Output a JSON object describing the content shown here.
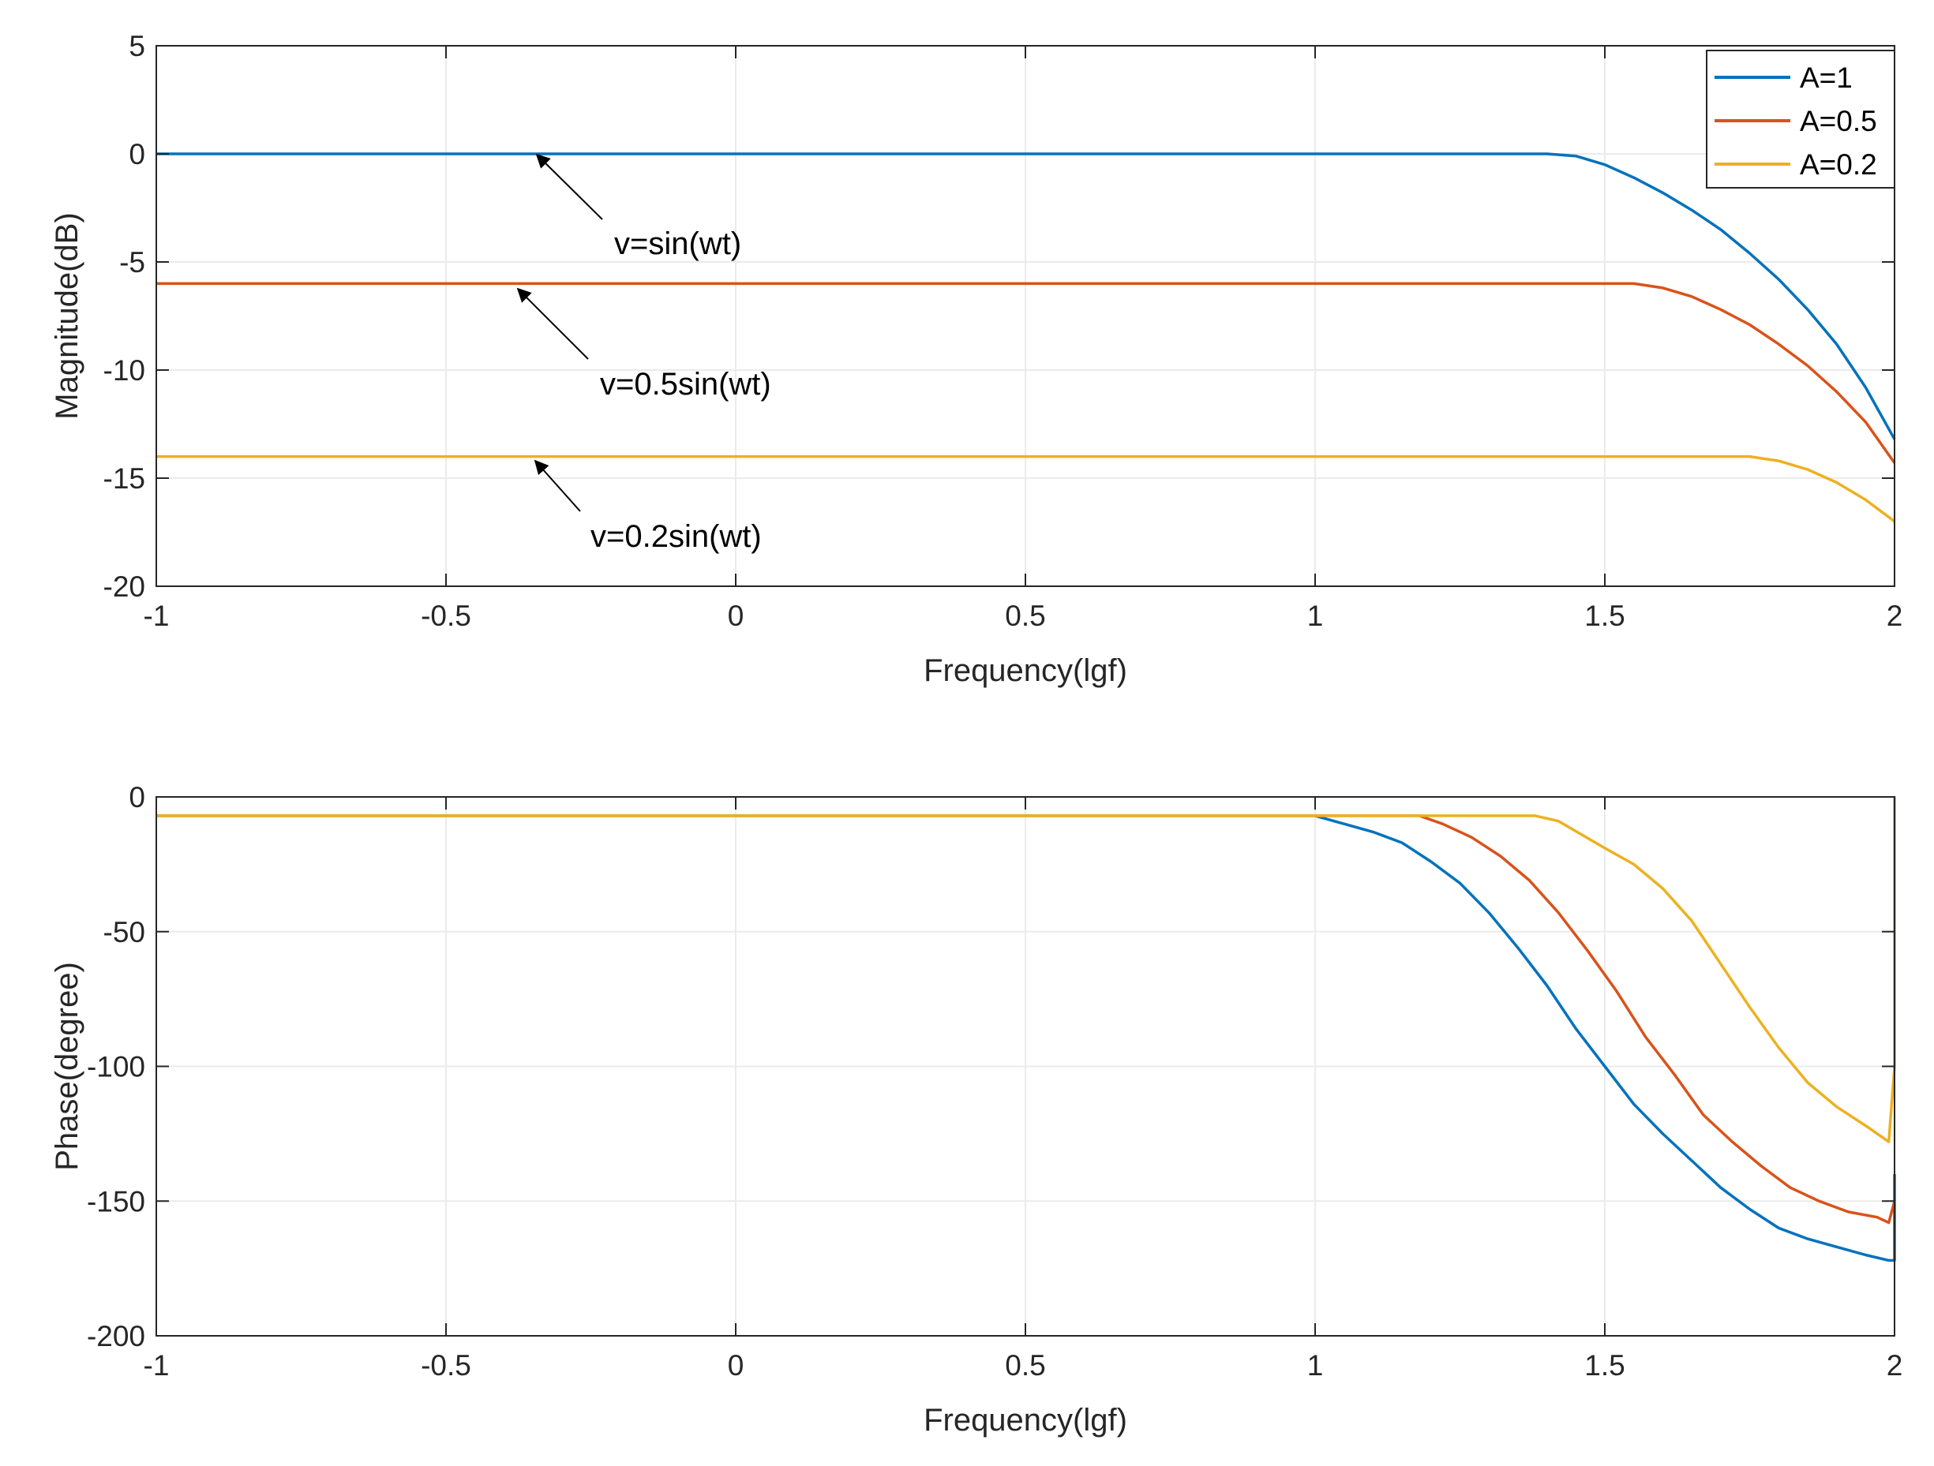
{
  "colors": {
    "A1": "#0072BD",
    "A05": "#D95319",
    "A02": "#EDB120",
    "axis": "#262626",
    "grid": "#ebebeb"
  },
  "chart_data": [
    {
      "type": "line",
      "xlabel": "Frequency(lgf)",
      "ylabel": "Magnitude(dB)",
      "xlim": [
        -1,
        2
      ],
      "ylim": [
        -20,
        5
      ],
      "xticks": [
        -1,
        -0.5,
        0,
        0.5,
        1,
        1.5,
        2
      ],
      "xtick_labels": [
        "-1",
        "-0.5",
        "0",
        "0.5",
        "1",
        "1.5",
        "2"
      ],
      "yticks": [
        -20,
        -15,
        -10,
        -5,
        0,
        5
      ],
      "ytick_labels": [
        "-20",
        "-15",
        "-10",
        "-5",
        "0",
        "5"
      ],
      "grid": true,
      "legend": {
        "position": "top-right",
        "entries": [
          "A=1",
          "A=0.5",
          "A=0.2"
        ]
      },
      "annotations": [
        {
          "text": "v=sin(wt)",
          "x": -0.35,
          "y": 0
        },
        {
          "text": "v=0.5sin(wt)",
          "x": -0.38,
          "y": -6
        },
        {
          "text": "v=0.2sin(wt)",
          "x": -0.35,
          "y": -14
        }
      ],
      "series": [
        {
          "name": "A=1",
          "x": [
            -1,
            1.4,
            1.45,
            1.5,
            1.55,
            1.6,
            1.65,
            1.7,
            1.75,
            1.8,
            1.85,
            1.9,
            1.95,
            2.0
          ],
          "y": [
            0,
            0,
            -0.1,
            -0.5,
            -1.1,
            -1.8,
            -2.6,
            -3.5,
            -4.6,
            -5.8,
            -7.2,
            -8.8,
            -10.8,
            -13.2
          ]
        },
        {
          "name": "A=0.5",
          "x": [
            -1,
            1.55,
            1.6,
            1.65,
            1.7,
            1.75,
            1.8,
            1.85,
            1.9,
            1.95,
            2.0
          ],
          "y": [
            -6,
            -6,
            -6.2,
            -6.6,
            -7.2,
            -7.9,
            -8.8,
            -9.8,
            -11.0,
            -12.4,
            -14.3
          ]
        },
        {
          "name": "A=0.2",
          "x": [
            -1,
            1.75,
            1.8,
            1.85,
            1.9,
            1.95,
            2.0
          ],
          "y": [
            -14,
            -14,
            -14.2,
            -14.6,
            -15.2,
            -16.0,
            -17.0
          ]
        }
      ]
    },
    {
      "type": "line",
      "xlabel": "Frequency(lgf)",
      "ylabel": "Phase(degree)",
      "xlim": [
        -1,
        2
      ],
      "ylim": [
        -200,
        0
      ],
      "xticks": [
        -1,
        -0.5,
        0,
        0.5,
        1,
        1.5,
        2
      ],
      "xtick_labels": [
        "-1",
        "-0.5",
        "0",
        "0.5",
        "1",
        "1.5",
        "2"
      ],
      "yticks": [
        -200,
        -150,
        -100,
        -50,
        0
      ],
      "ytick_labels": [
        "-200",
        "-150",
        "-100",
        "-50",
        "0"
      ],
      "grid": true,
      "series": [
        {
          "name": "A=1",
          "x": [
            -1,
            1.0,
            1.05,
            1.1,
            1.15,
            1.2,
            1.25,
            1.3,
            1.35,
            1.4,
            1.45,
            1.5,
            1.55,
            1.6,
            1.65,
            1.7,
            1.75,
            1.8,
            1.85,
            1.9,
            1.95,
            1.99,
            2.0,
            2.0
          ],
          "y": [
            -7,
            -7,
            -10,
            -13,
            -17,
            -24,
            -32,
            -43,
            -56,
            -70,
            -86,
            -100,
            -114,
            -125,
            -135,
            -145,
            -153,
            -160,
            -164,
            -167,
            -170,
            -172,
            -172,
            -140
          ]
        },
        {
          "name": "A=0.5",
          "x": [
            -1,
            1.18,
            1.22,
            1.27,
            1.32,
            1.37,
            1.42,
            1.47,
            1.52,
            1.57,
            1.62,
            1.67,
            1.72,
            1.77,
            1.82,
            1.87,
            1.92,
            1.97,
            1.99,
            2.0
          ],
          "y": [
            -7,
            -7,
            -10,
            -15,
            -22,
            -31,
            -43,
            -57,
            -72,
            -89,
            -103,
            -118,
            -128,
            -137,
            -145,
            -150,
            -154,
            -156,
            -158,
            -150
          ]
        },
        {
          "name": "A=0.2",
          "x": [
            -1,
            1.38,
            1.42,
            1.46,
            1.5,
            1.55,
            1.6,
            1.65,
            1.7,
            1.75,
            1.8,
            1.85,
            1.9,
            1.95,
            1.99,
            2.0,
            2.0
          ],
          "y": [
            -7,
            -7,
            -9,
            -14,
            -19,
            -25,
            -34,
            -46,
            -62,
            -78,
            -93,
            -106,
            -115,
            -122,
            -128,
            -100,
            0
          ]
        }
      ]
    }
  ]
}
